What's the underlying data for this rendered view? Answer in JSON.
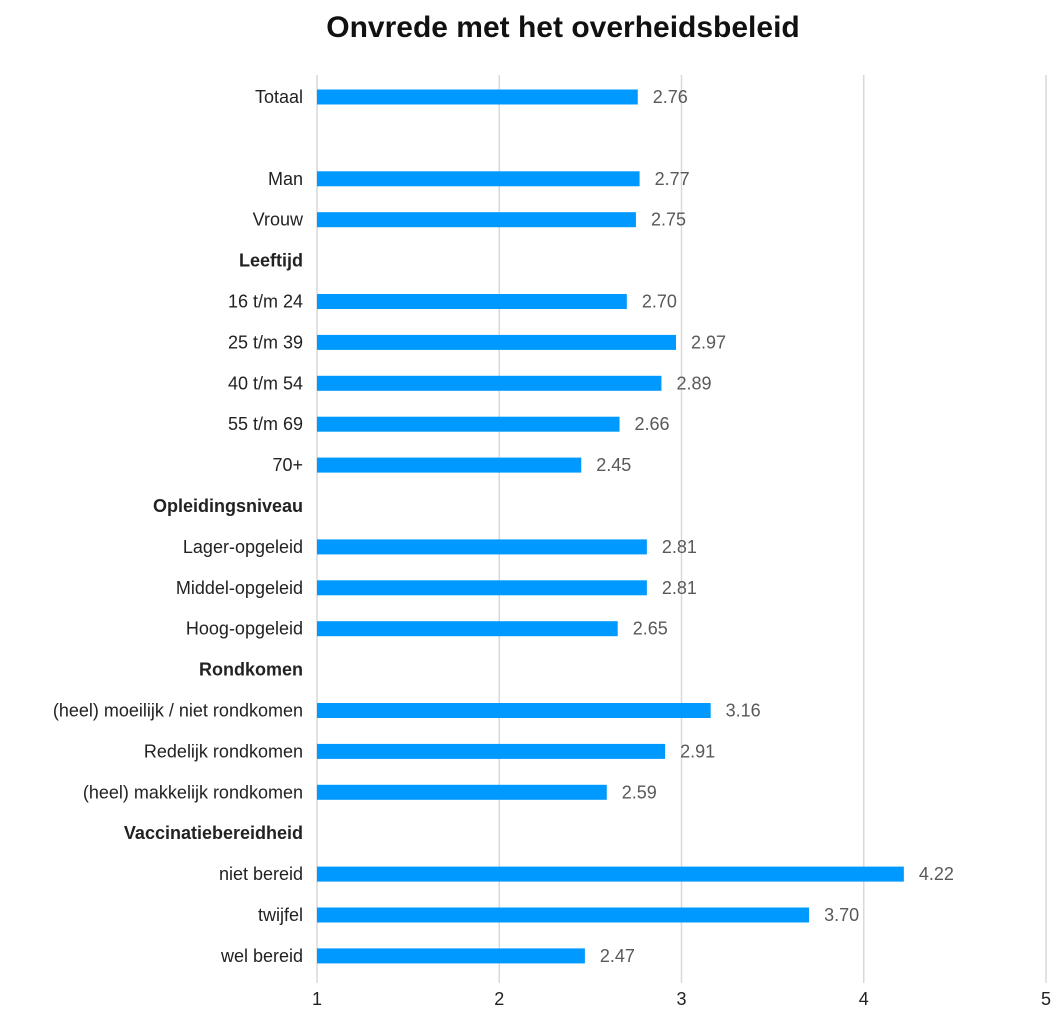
{
  "chart_data": {
    "type": "bar",
    "orientation": "horizontal",
    "title": "Onvrede met het overheidsbeleid",
    "xlabel": "",
    "ylabel": "",
    "xlim": [
      1,
      5
    ],
    "xticks": [
      "1",
      "2",
      "3",
      "4",
      "5"
    ],
    "grid": true,
    "bar_color": "#0099ff",
    "rows": [
      {
        "label": "Totaal",
        "value": 2.76,
        "value_label": "2.76",
        "header": false
      },
      {
        "label": "",
        "value": null,
        "value_label": "",
        "header": false
      },
      {
        "label": "Man",
        "value": 2.77,
        "value_label": "2.77",
        "header": false
      },
      {
        "label": "Vrouw",
        "value": 2.75,
        "value_label": "2.75",
        "header": false
      },
      {
        "label": "Leeftijd",
        "value": null,
        "value_label": "",
        "header": true
      },
      {
        "label": "16 t/m 24",
        "value": 2.7,
        "value_label": "2.70",
        "header": false
      },
      {
        "label": "25 t/m 39",
        "value": 2.97,
        "value_label": "2.97",
        "header": false
      },
      {
        "label": "40 t/m 54",
        "value": 2.89,
        "value_label": "2.89",
        "header": false
      },
      {
        "label": "55 t/m 69",
        "value": 2.66,
        "value_label": "2.66",
        "header": false
      },
      {
        "label": "70+",
        "value": 2.45,
        "value_label": "2.45",
        "header": false
      },
      {
        "label": "Opleidingsniveau",
        "value": null,
        "value_label": "",
        "header": true
      },
      {
        "label": "Lager-opgeleid",
        "value": 2.81,
        "value_label": "2.81",
        "header": false
      },
      {
        "label": "Middel-opgeleid",
        "value": 2.81,
        "value_label": "2.81",
        "header": false
      },
      {
        "label": "Hoog-opgeleid",
        "value": 2.65,
        "value_label": "2.65",
        "header": false
      },
      {
        "label": "Rondkomen",
        "value": null,
        "value_label": "",
        "header": true
      },
      {
        "label": "(heel) moeilijk / niet rondkomen",
        "value": 3.16,
        "value_label": "3.16",
        "header": false
      },
      {
        "label": "Redelijk rondkomen",
        "value": 2.91,
        "value_label": "2.91",
        "header": false
      },
      {
        "label": "(heel) makkelijk rondkomen",
        "value": 2.59,
        "value_label": "2.59",
        "header": false
      },
      {
        "label": "Vaccinatiebereidheid",
        "value": null,
        "value_label": "",
        "header": true
      },
      {
        "label": "niet bereid",
        "value": 4.22,
        "value_label": "4.22",
        "header": false
      },
      {
        "label": "twijfel",
        "value": 3.7,
        "value_label": "3.70",
        "header": false
      },
      {
        "label": "wel bereid",
        "value": 2.47,
        "value_label": "2.47",
        "header": false
      }
    ]
  }
}
